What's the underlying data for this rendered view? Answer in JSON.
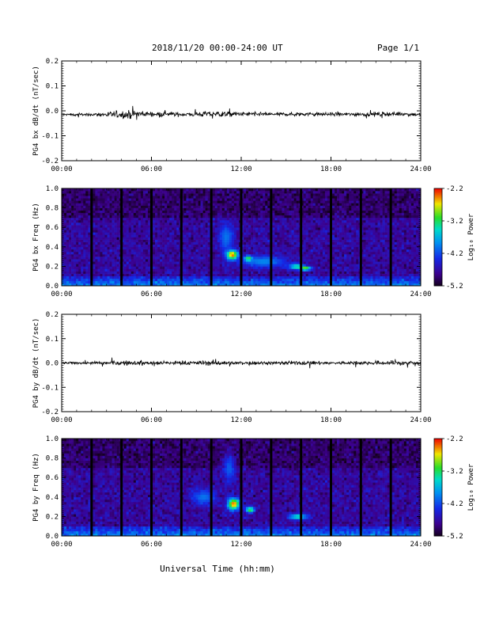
{
  "header": {
    "title": "2018/11/20  00:00-24:00 UT",
    "page": "Page 1/1"
  },
  "footer": {
    "xlabel": "Universal Time (hh:mm)"
  },
  "colors": {
    "trace": "#000000",
    "gap": "#000000",
    "background": "#ffffff"
  },
  "chart_data": [
    {
      "type": "line",
      "ylabel": "PG4 bx dB/dt (nT/sec)",
      "x_ticks": [
        "00:00",
        "06:00",
        "12:00",
        "18:00",
        "24:00"
      ],
      "y_ticks": [
        "0.2",
        "0.1",
        "0.0",
        "-0.1",
        "-0.2"
      ],
      "xlim": [
        0,
        24
      ],
      "ylim": [
        -0.2,
        0.2
      ],
      "series": [
        {
          "x": [
            0,
            2,
            4.5,
            5.0,
            8,
            10.5,
            12,
            14.5,
            16.5,
            18,
            20,
            22.5,
            24
          ],
          "baseline": [
            -0.015,
            -0.015,
            -0.015,
            -0.012,
            -0.014,
            -0.013,
            -0.013,
            -0.014,
            -0.013,
            -0.014,
            -0.014,
            -0.012,
            -0.015
          ],
          "amplitude": [
            0.006,
            0.008,
            0.025,
            0.015,
            0.012,
            0.018,
            0.012,
            0.01,
            0.012,
            0.01,
            0.01,
            0.012,
            0.01
          ]
        }
      ]
    },
    {
      "type": "heatmap",
      "ylabel": "PG4 bx Freq (Hz)",
      "x_ticks": [
        "00:00",
        "06:00",
        "12:00",
        "18:00",
        "24:00"
      ],
      "y_ticks": [
        "1.0",
        "0.8",
        "0.6",
        "0.4",
        "0.2",
        "0.0"
      ],
      "xlim": [
        0,
        24
      ],
      "ylim": [
        0.0,
        1.0
      ],
      "colorbar": {
        "label": "Log₁₀ Power",
        "ticks": [
          "-2.2",
          "-3.2",
          "-4.2",
          "-5.2"
        ],
        "range": [
          -5.2,
          -2.2
        ]
      },
      "gaps_hours": [
        2.0,
        4.0,
        6.0,
        8.0,
        10.0,
        12.0,
        14.0,
        16.0,
        18.0,
        20.0,
        22.0
      ],
      "features": [
        {
          "x": 11.4,
          "y": 0.32,
          "dx": 0.4,
          "dy": 0.05,
          "level": -2.4
        },
        {
          "x": 12.5,
          "y": 0.28,
          "dx": 0.3,
          "dy": 0.03,
          "level": -3.0
        },
        {
          "x": 15.7,
          "y": 0.2,
          "dx": 0.5,
          "dy": 0.03,
          "level": -3.3
        },
        {
          "x": 16.3,
          "y": 0.18,
          "dx": 0.4,
          "dy": 0.02,
          "level": -2.8
        },
        {
          "x": 11.0,
          "y": 0.5,
          "dx": 0.5,
          "dy": 0.15,
          "level": -4.0
        },
        {
          "x": 13.5,
          "y": 0.25,
          "dx": 1.5,
          "dy": 0.06,
          "level": -3.9
        }
      ]
    },
    {
      "type": "line",
      "ylabel": "PG4 by dB/dt (nT/sec)",
      "x_ticks": [
        "00:00",
        "06:00",
        "12:00",
        "18:00",
        "24:00"
      ],
      "y_ticks": [
        "0.2",
        "0.1",
        "0.0",
        "-0.1",
        "-0.2"
      ],
      "xlim": [
        0,
        24
      ],
      "ylim": [
        -0.2,
        0.2
      ],
      "series": [
        {
          "x": [
            0,
            2,
            4.0,
            6.0,
            8,
            10,
            12,
            14.5,
            16.5,
            18,
            20,
            22.5,
            24
          ],
          "baseline": [
            0.0,
            0.0,
            0.0,
            0.0,
            0.0,
            0.0,
            0.0,
            0.0,
            0.0,
            0.0,
            0.0,
            0.0,
            0.0
          ],
          "amplitude": [
            0.006,
            0.008,
            0.015,
            0.01,
            0.012,
            0.015,
            0.01,
            0.01,
            0.012,
            0.008,
            0.01,
            0.015,
            0.012
          ]
        }
      ]
    },
    {
      "type": "heatmap",
      "ylabel": "PG4 by Freq (Hz)",
      "x_ticks": [
        "00:00",
        "06:00",
        "12:00",
        "18:00",
        "24:00"
      ],
      "y_ticks": [
        "1.0",
        "0.8",
        "0.6",
        "0.4",
        "0.2",
        "0.0"
      ],
      "xlim": [
        0,
        24
      ],
      "ylim": [
        0.0,
        1.0
      ],
      "colorbar": {
        "label": "Log₁₀ Power",
        "ticks": [
          "-2.2",
          "-3.2",
          "-4.2",
          "-5.2"
        ],
        "range": [
          -5.2,
          -2.2
        ]
      },
      "gaps_hours": [
        2.0,
        4.0,
        6.0,
        8.0,
        10.0,
        12.0,
        14.0,
        16.0,
        18.0,
        20.0,
        22.0
      ],
      "features": [
        {
          "x": 11.5,
          "y": 0.33,
          "dx": 0.4,
          "dy": 0.06,
          "level": -2.4
        },
        {
          "x": 12.6,
          "y": 0.27,
          "dx": 0.3,
          "dy": 0.03,
          "level": -3.0
        },
        {
          "x": 15.8,
          "y": 0.2,
          "dx": 0.6,
          "dy": 0.03,
          "level": -3.3
        },
        {
          "x": 9.5,
          "y": 0.4,
          "dx": 0.8,
          "dy": 0.08,
          "level": -4.0
        },
        {
          "x": 11.2,
          "y": 0.7,
          "dx": 0.4,
          "dy": 0.15,
          "level": -4.1
        }
      ]
    }
  ]
}
